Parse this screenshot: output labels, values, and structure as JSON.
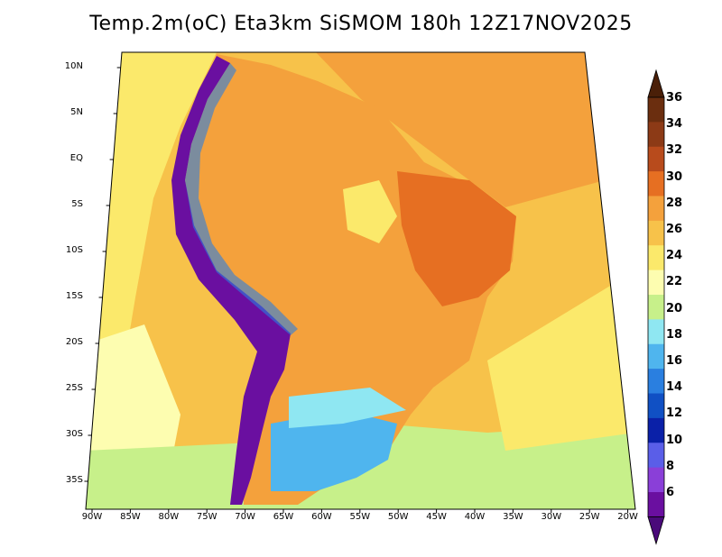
{
  "title": "Temp.2m(oC) Eta3km SiSMOM 180h 12Z17NOV2025",
  "lat_labels": [
    "10N",
    "5N",
    "EQ",
    "5S",
    "10S",
    "15S",
    "20S",
    "25S",
    "30S",
    "35S"
  ],
  "lon_labels": [
    "90W",
    "85W",
    "80W",
    "75W",
    "70W",
    "65W",
    "60W",
    "55W",
    "50W",
    "45W",
    "40W",
    "35W",
    "30W",
    "25W",
    "20W"
  ],
  "colorbar": {
    "labels": [
      "36",
      "34",
      "32",
      "30",
      "28",
      "26",
      "24",
      "22",
      "20",
      "18",
      "16",
      "14",
      "12",
      "10",
      "8",
      "6"
    ],
    "colors": [
      "#6b2e0f",
      "#8c3a16",
      "#b84b1c",
      "#e66f22",
      "#f4a13c",
      "#f7c24a",
      "#fbe96b",
      "#fdfdb0",
      "#c7f08a",
      "#8fe7f2",
      "#4fb5ee",
      "#2a7fe0",
      "#1050c4",
      "#0a20a8",
      "#5a5ee8",
      "#8a3fd8",
      "#6a0fa0"
    ],
    "upper_arrow_color": "#4a1f08",
    "lower_arrow_color": "#4a0a7a"
  },
  "map": {
    "ocean_color": "#f7c24a",
    "land_color": "#f4a13c",
    "nordeste_color": "#e66f22",
    "andes_color": "#6a0fa0",
    "south_cool_color": "#4fb5ee",
    "southern_band_color": "#c7f08a"
  }
}
